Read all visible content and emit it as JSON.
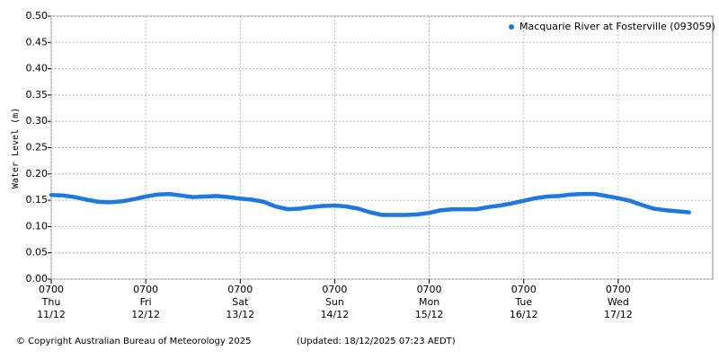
{
  "chart_data": {
    "type": "line",
    "ylabel": "Water Level (m)",
    "x": [
      "11/12 0700",
      "11/12 1000",
      "11/12 1300",
      "11/12 1600",
      "11/12 1900",
      "11/12 2200",
      "12/12 0100",
      "12/12 0400",
      "12/12 0700",
      "12/12 1000",
      "12/12 1300",
      "12/12 1600",
      "12/12 1900",
      "12/12 2200",
      "13/12 0100",
      "13/12 0400",
      "13/12 0700",
      "13/12 1000",
      "13/12 1300",
      "13/12 1600",
      "13/12 1900",
      "13/12 2200",
      "14/12 0100",
      "14/12 0400",
      "14/12 0700",
      "14/12 1000",
      "14/12 1300",
      "14/12 1600",
      "14/12 1900",
      "14/12 2200",
      "15/12 0100",
      "15/12 0400",
      "15/12 0700",
      "15/12 1000",
      "15/12 1300",
      "15/12 1600",
      "15/12 1900",
      "15/12 2200",
      "16/12 0100",
      "16/12 0400",
      "16/12 0700",
      "16/12 1000",
      "16/12 1300",
      "16/12 1600",
      "16/12 1900",
      "16/12 2200",
      "17/12 0100",
      "17/12 0400",
      "17/12 0700",
      "17/12 1000",
      "17/12 1300",
      "17/12 1600",
      "17/12 1900",
      "17/12 2200",
      "18/12 0100"
    ],
    "series": [
      {
        "name": "Macquarie River at Fosterville (093059)",
        "color": "#1f77e0",
        "values": [
          0.16,
          0.159,
          0.156,
          0.151,
          0.147,
          0.146,
          0.148,
          0.152,
          0.157,
          0.161,
          0.162,
          0.159,
          0.156,
          0.157,
          0.158,
          0.156,
          0.153,
          0.151,
          0.147,
          0.138,
          0.133,
          0.134,
          0.137,
          0.139,
          0.14,
          0.138,
          0.134,
          0.127,
          0.122,
          0.122,
          0.122,
          0.123,
          0.126,
          0.131,
          0.133,
          0.133,
          0.133,
          0.137,
          0.14,
          0.144,
          0.149,
          0.154,
          0.157,
          0.158,
          0.161,
          0.162,
          0.162,
          0.158,
          0.154,
          0.149,
          0.141,
          0.134,
          0.131,
          0.129,
          0.127
        ]
      }
    ],
    "xlim": [
      "11/12 0700",
      "18/12 0700"
    ],
    "xticks": [
      {
        "value": "11/12 0700",
        "label": [
          "0700",
          "Thu",
          "11/12"
        ]
      },
      {
        "value": "12/12 0700",
        "label": [
          "0700",
          "Fri",
          "12/12"
        ]
      },
      {
        "value": "13/12 0700",
        "label": [
          "0700",
          "Sat",
          "13/12"
        ]
      },
      {
        "value": "14/12 0700",
        "label": [
          "0700",
          "Sun",
          "14/12"
        ]
      },
      {
        "value": "15/12 0700",
        "label": [
          "0700",
          "Mon",
          "15/12"
        ]
      },
      {
        "value": "16/12 0700",
        "label": [
          "0700",
          "Tue",
          "16/12"
        ]
      },
      {
        "value": "17/12 0700",
        "label": [
          "0700",
          "Wed",
          "17/12"
        ]
      }
    ],
    "ylim": [
      0,
      0.5
    ],
    "yticks": [
      {
        "value": 0,
        "label": "0.00"
      },
      0.05,
      {
        "value": 0.1,
        "label": "0.10"
      },
      0.15,
      {
        "value": 0.2,
        "label": "0.20"
      },
      0.25,
      {
        "value": 0.3,
        "label": "0.30"
      },
      0.35,
      {
        "value": 0.4,
        "label": "0.40"
      },
      0.45,
      {
        "value": 0.5,
        "label": "0.50"
      }
    ],
    "grid": true,
    "legend": "top-right",
    "footer_left": "© Copyright Australian Bureau of Meteorology 2025",
    "footer_right": "(Updated: 18/12/2025 07:23 AEDT)"
  }
}
